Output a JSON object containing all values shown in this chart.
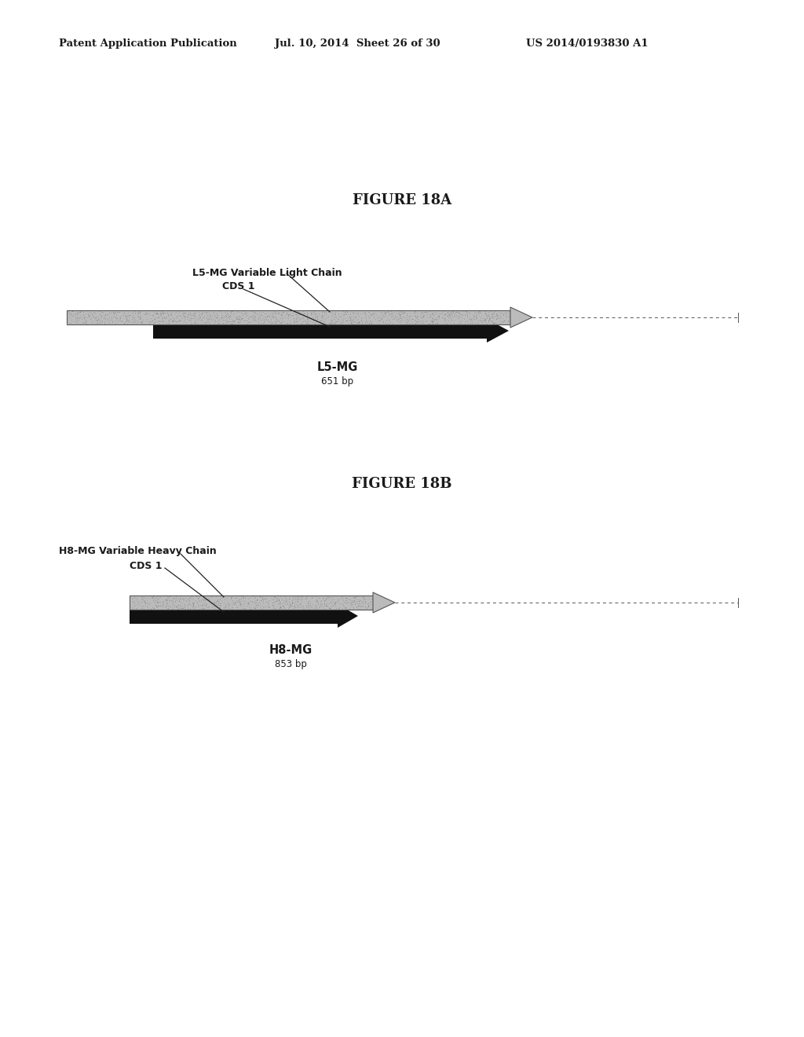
{
  "header_left": "Patent Application Publication",
  "header_mid": "Jul. 10, 2014  Sheet 26 of 30",
  "header_right": "US 2014/0193830 A1",
  "fig18a_title": "FIGURE 18A",
  "fig18a_label1": "L5-MG Variable Light Chain",
  "fig18a_label2": "CDS 1",
  "fig18a_name": "L5-MG",
  "fig18a_bp": "651 bp",
  "fig18b_title": "FIGURE 18B",
  "fig18b_label1": "H8-MG Variable Heavy Chain",
  "fig18b_label2": "CDS 1",
  "fig18b_name": "H8-MG",
  "fig18b_bp": "853 bp",
  "bg_color": "#ffffff",
  "text_color": "#1a1a1a",
  "gray_fill": "#999999",
  "black_fill": "#111111"
}
